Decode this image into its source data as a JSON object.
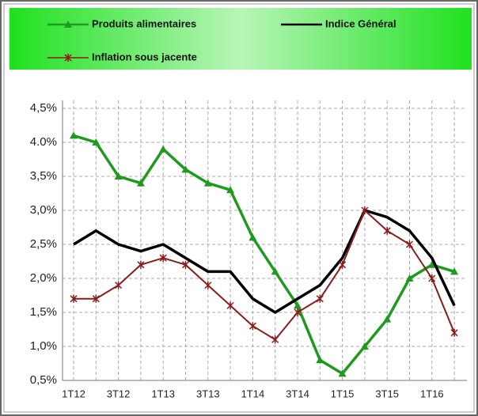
{
  "chart_data": {
    "type": "line",
    "categories": [
      "1T12",
      null,
      "3T12",
      null,
      "1T13",
      null,
      "3T13",
      null,
      "1T14",
      null,
      "3T14",
      null,
      "1T15",
      null,
      "3T15",
      null,
      "1T16",
      null
    ],
    "series": [
      {
        "name": "Produits alimentaires",
        "color": "#1f9a1f",
        "marker": "triangle",
        "values": [
          4.1,
          4.0,
          3.5,
          3.4,
          3.9,
          3.6,
          3.4,
          3.3,
          2.6,
          2.1,
          1.6,
          0.8,
          0.6,
          1.0,
          1.4,
          2.0,
          2.2,
          2.1
        ]
      },
      {
        "name": "Indice Général",
        "color": "#000000",
        "marker": "none",
        "values": [
          2.5,
          2.7,
          2.5,
          2.4,
          2.5,
          2.3,
          2.1,
          2.1,
          1.7,
          1.5,
          1.7,
          1.9,
          2.3,
          3.0,
          2.9,
          2.7,
          2.3,
          1.6
        ]
      },
      {
        "name": "Inflation sous jacente",
        "color": "#8b1c1c",
        "marker": "star",
        "values": [
          1.7,
          1.7,
          1.9,
          2.2,
          2.3,
          2.2,
          1.9,
          1.6,
          1.3,
          1.1,
          1.5,
          1.7,
          2.2,
          3.0,
          2.7,
          2.5,
          2.0,
          1.2
        ]
      }
    ],
    "ylim": [
      0.5,
      4.5
    ],
    "yticks": [
      {
        "value": 0.5,
        "label": "0,5%"
      },
      {
        "value": 1.0,
        "label": "1,0%"
      },
      {
        "value": 1.5,
        "label": "1,5%"
      },
      {
        "value": 2.0,
        "label": "2,0%"
      },
      {
        "value": 2.5,
        "label": "2,5%"
      },
      {
        "value": 3.0,
        "label": "3,0%"
      },
      {
        "value": 3.5,
        "label": "3,5%"
      },
      {
        "value": 4.0,
        "label": "4.0%"
      },
      {
        "value": 4.5,
        "label": "4,5%"
      }
    ],
    "grid": true
  }
}
